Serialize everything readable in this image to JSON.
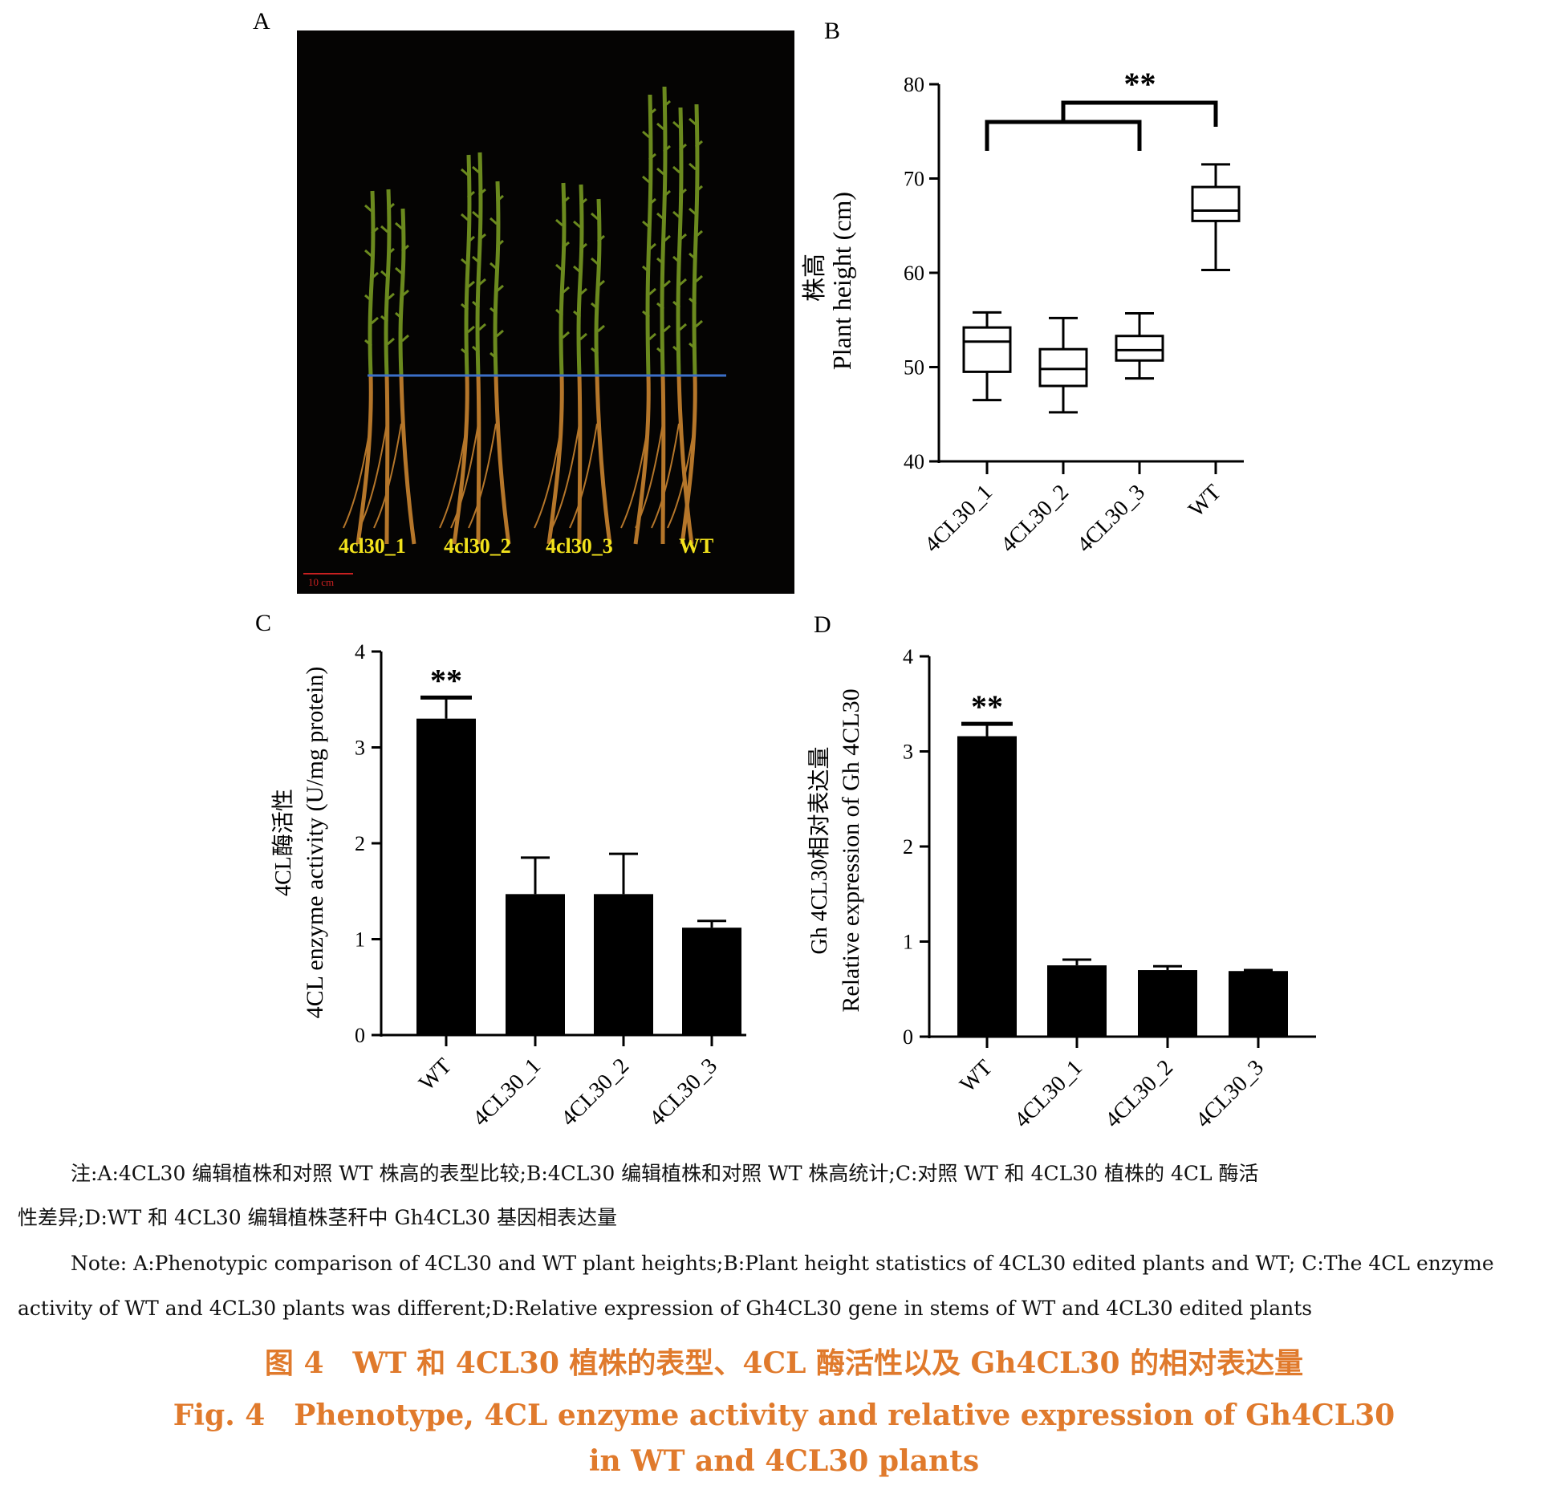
{
  "panels": {
    "a": "A",
    "b": "B",
    "c": "C",
    "d": "D"
  },
  "photo": {
    "labels": [
      "4cl30_1",
      "4cl30_2",
      "4cl30_3",
      "WT"
    ],
    "scale_bar_label": "10 cm",
    "reference_line_color": "#3b6fc9",
    "stem_color": "#6b8a1e",
    "root_color": "#b5762a"
  },
  "chart_data": [
    {
      "panel": "B",
      "type": "box",
      "categories": [
        "4CL30_1",
        "4CL30_2",
        "4CL30_3",
        "WT"
      ],
      "boxes": [
        {
          "min": 46.5,
          "q1": 49.5,
          "median": 52.7,
          "q3": 54.2,
          "max": 55.8
        },
        {
          "min": 45.2,
          "q1": 48.0,
          "median": 49.8,
          "q3": 51.9,
          "max": 55.2
        },
        {
          "min": 48.8,
          "q1": 50.7,
          "median": 51.8,
          "q3": 53.3,
          "max": 55.7
        },
        {
          "min": 60.3,
          "q1": 65.5,
          "median": 66.6,
          "q3": 69.1,
          "max": 71.5
        }
      ],
      "ylabel_zh": "株高",
      "ylabel": "Plant height (cm)",
      "ylim": [
        40,
        80
      ],
      "yticks": [
        40,
        50,
        60,
        70,
        80
      ],
      "significance": "**"
    },
    {
      "panel": "C",
      "type": "bar",
      "categories": [
        "WT",
        "4CL30_1",
        "4CL30_2",
        "4CL30_3"
      ],
      "values": [
        3.3,
        1.47,
        1.47,
        1.12
      ],
      "errors": [
        0.22,
        0.38,
        0.42,
        0.07
      ],
      "ylabel_zh": "4CL酶活性",
      "ylabel": "4CL enzyme activity (U/mg protein)",
      "ylim": [
        0,
        4
      ],
      "yticks": [
        0,
        1,
        2,
        3,
        4
      ],
      "significance": "**"
    },
    {
      "panel": "D",
      "type": "bar",
      "categories": [
        "WT",
        "4CL30_1",
        "4CL30_2",
        "4CL30_3"
      ],
      "values": [
        3.16,
        0.75,
        0.7,
        0.69
      ],
      "errors": [
        0.13,
        0.06,
        0.04,
        0.01
      ],
      "ylabel_zh": "Gh 4CL30相对表达量",
      "ylabel": "Relative expression of Gh 4CL30",
      "ylim": [
        0,
        4
      ],
      "yticks": [
        0,
        1,
        2,
        3,
        4
      ],
      "significance": "**"
    }
  ],
  "notes": {
    "zh_line1": "注:A:4CL30 编辑植株和对照 WT 株高的表型比较;B:4CL30 编辑植株和对照 WT 株高统计;C:对照 WT 和 4CL30 植株的 4CL 酶活",
    "zh_line2": "性差异;D:WT 和 4CL30 编辑植株茎秆中 Gh4CL30 基因相表达量",
    "en_line1": "Note: A:Phenotypic comparison of 4CL30 and WT plant heights;B:Plant height statistics of 4CL30 edited plants and WT; C:The 4CL enzyme",
    "en_line2": "activity of WT and 4CL30 plants was different;D:Relative expression of Gh4CL30 gene in stems of WT and 4CL30 edited plants"
  },
  "figure_title": {
    "zh": "图 4　WT 和 4CL30 植株的表型、4CL 酶活性以及 Gh4CL30 的相对表达量",
    "en_line1": "Fig. 4　Phenotype, 4CL enzyme activity and relative expression of Gh4CL30",
    "en_line2": "in WT and 4CL30 plants"
  }
}
